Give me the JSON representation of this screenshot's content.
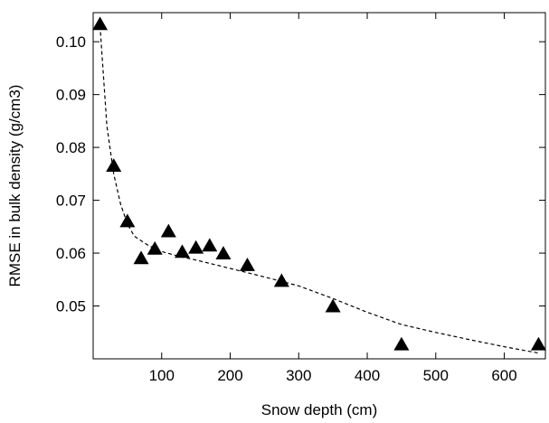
{
  "chart_data": {
    "type": "scatter",
    "title": "",
    "xlabel": "Snow depth (cm)",
    "ylabel": "RMSE in bulk density (g/cm3)",
    "xlim": [
      0,
      660
    ],
    "ylim": [
      0.04,
      0.1055
    ],
    "x_ticks": [
      100,
      200,
      300,
      400,
      500,
      600
    ],
    "x_tick_labels": [
      "100",
      "200",
      "300",
      "400",
      "500",
      "600"
    ],
    "y_ticks": [
      0.05,
      0.06,
      0.07,
      0.08,
      0.09,
      0.1
    ],
    "y_tick_labels": [
      "0.05",
      "0.06",
      "0.07",
      "0.08",
      "0.09",
      "0.10"
    ],
    "grid": false,
    "marker": "triangle",
    "marker_color": "#000000",
    "points": [
      {
        "x": 10,
        "y": 0.1033
      },
      {
        "x": 30,
        "y": 0.0765
      },
      {
        "x": 50,
        "y": 0.066
      },
      {
        "x": 70,
        "y": 0.059
      },
      {
        "x": 90,
        "y": 0.0608
      },
      {
        "x": 110,
        "y": 0.0641
      },
      {
        "x": 130,
        "y": 0.0602
      },
      {
        "x": 150,
        "y": 0.061
      },
      {
        "x": 170,
        "y": 0.0614
      },
      {
        "x": 190,
        "y": 0.0599
      },
      {
        "x": 225,
        "y": 0.0577
      },
      {
        "x": 275,
        "y": 0.0547
      },
      {
        "x": 350,
        "y": 0.0499
      },
      {
        "x": 450,
        "y": 0.0427
      },
      {
        "x": 650,
        "y": 0.0427
      }
    ],
    "fit_line": {
      "style": "dashed",
      "x": [
        10,
        20,
        30,
        40,
        50,
        60,
        80,
        100,
        125,
        150,
        175,
        200,
        250,
        300,
        350,
        400,
        450,
        500,
        550,
        600,
        650
      ],
      "y": [
        0.103,
        0.084,
        0.075,
        0.0693,
        0.0655,
        0.0632,
        0.0615,
        0.0603,
        0.0594,
        0.0587,
        0.0579,
        0.0571,
        0.0555,
        0.0538,
        0.0514,
        0.0488,
        0.0465,
        0.045,
        0.0436,
        0.0423,
        0.0411
      ]
    }
  }
}
